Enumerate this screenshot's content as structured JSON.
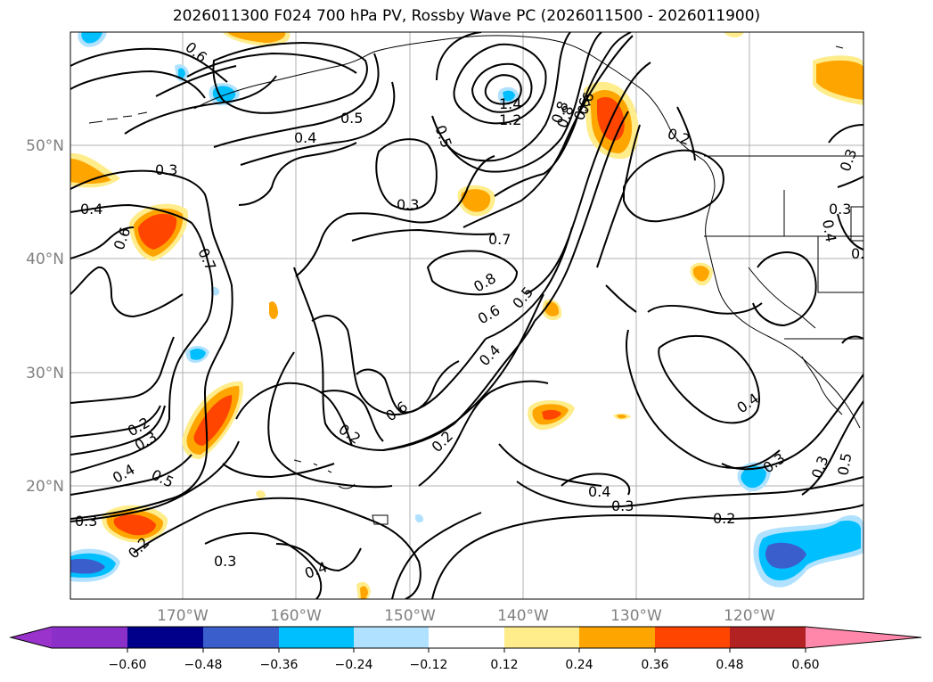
{
  "title": "2026011300 F024 700 hPa PV, Rossby Wave PC (2026011500 - 2026011900)",
  "lat_labels": [
    "50°N",
    "40°N",
    "30°N",
    "20°N"
  ],
  "lon_labels": [
    "170°W",
    "160°W",
    "150°W",
    "140°W",
    "130°W",
    "120°W"
  ],
  "contour_labels": [
    "0.6",
    "0.5",
    "0.4",
    "0.3",
    "0.4",
    "0.6",
    "0.7",
    "0.3",
    "0.5",
    "0.6",
    "0.8",
    "0.7",
    "0.8",
    "0.6",
    "0.5",
    "0.4",
    "0.6",
    "0.2",
    "0.2",
    "0.3",
    "0.4",
    "0.5",
    "0.2",
    "0.3",
    "0.3",
    "0.4",
    "0.3",
    "0.4",
    "0.2",
    "1.4",
    "1.2",
    "0.8",
    "0.6",
    "0.2",
    "0.3",
    "0.4",
    "0.3",
    "0.4",
    "0.5",
    "0.3",
    "0.2",
    "0.2",
    "0.3"
  ],
  "colorbar": {
    "ticks": [
      "−0.60",
      "−0.48",
      "−0.36",
      "−0.24",
      "−0.12",
      "0.12",
      "0.24",
      "0.36",
      "0.48",
      "0.60"
    ],
    "colors": [
      "#9933cc",
      "#8b2fc9",
      "#00008b",
      "#3a5fcd",
      "#00bfff",
      "#b0e2ff",
      "#ffffff",
      "#ffec8b",
      "#ffa500",
      "#ff4500",
      "#b22222",
      "#ff88aa"
    ]
  }
}
